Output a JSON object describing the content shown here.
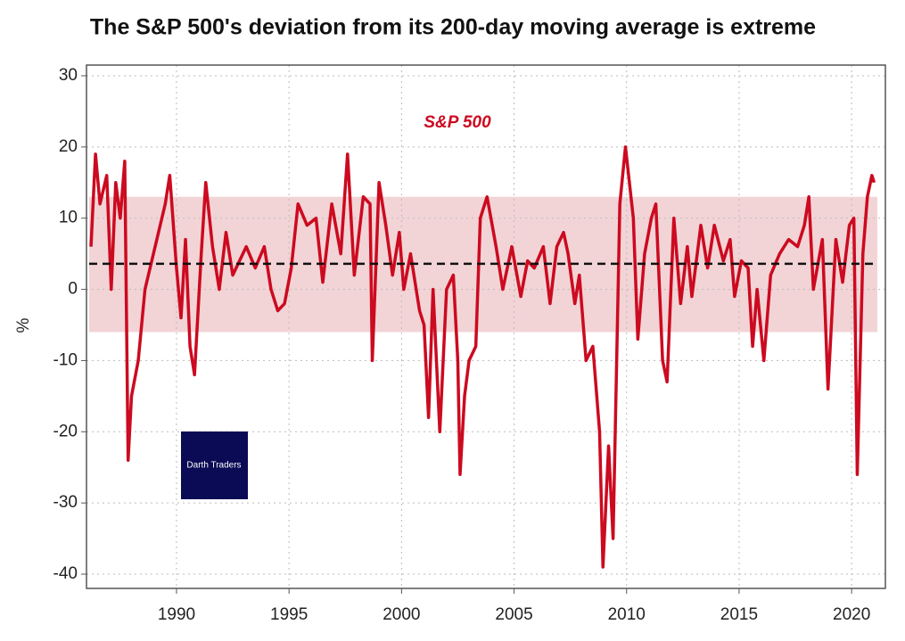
{
  "chart_data": {
    "type": "line",
    "title": "The S&P 500's deviation from its 200-day moving average is extreme",
    "y_label": "%",
    "watermark": "Darth Traders",
    "xlim": [
      1986,
      2021.5
    ],
    "xticks": [
      1990,
      1995,
      2000,
      2005,
      2010,
      2015,
      2020
    ],
    "ylim": [
      -42,
      31.5
    ],
    "yticks": [
      -40,
      -30,
      -20,
      -10,
      0,
      10,
      20,
      30
    ],
    "grid": true,
    "band": [
      -6,
      13
    ],
    "band_color": "#f2d4d6",
    "reference_line": 3.6,
    "series": [
      {
        "name": "S&P 500",
        "color": "#cc0a20",
        "x": [
          1986.2,
          1986.4,
          1986.6,
          1986.9,
          1987.1,
          1987.3,
          1987.5,
          1987.7,
          1987.85,
          1988.0,
          1988.3,
          1988.6,
          1988.9,
          1989.2,
          1989.5,
          1989.7,
          1990.0,
          1990.2,
          1990.4,
          1990.6,
          1990.8,
          1991.1,
          1991.3,
          1991.6,
          1991.9,
          1992.2,
          1992.5,
          1992.8,
          1993.1,
          1993.5,
          1993.9,
          1994.2,
          1994.5,
          1994.8,
          1995.1,
          1995.4,
          1995.8,
          1996.2,
          1996.5,
          1996.9,
          1997.3,
          1997.6,
          1997.9,
          1998.3,
          1998.6,
          1998.7,
          1999.0,
          1999.3,
          1999.6,
          1999.9,
          2000.1,
          2000.4,
          2000.8,
          2001.0,
          2001.2,
          2001.4,
          2001.7,
          2002.0,
          2002.3,
          2002.5,
          2002.6,
          2002.8,
          2003.0,
          2003.3,
          2003.5,
          2003.8,
          2004.2,
          2004.5,
          2004.9,
          2005.3,
          2005.6,
          2005.9,
          2006.3,
          2006.6,
          2006.9,
          2007.2,
          2007.4,
          2007.7,
          2007.9,
          2008.2,
          2008.5,
          2008.8,
          2008.95,
          2009.2,
          2009.4,
          2009.7,
          2009.95,
          2010.3,
          2010.5,
          2010.8,
          2011.1,
          2011.3,
          2011.6,
          2011.8,
          2012.1,
          2012.4,
          2012.7,
          2012.9,
          2013.3,
          2013.6,
          2013.9,
          2014.3,
          2014.6,
          2014.8,
          2015.1,
          2015.4,
          2015.6,
          2015.8,
          2016.1,
          2016.4,
          2016.8,
          2017.2,
          2017.6,
          2017.9,
          2018.1,
          2018.3,
          2018.7,
          2018.95,
          2019.3,
          2019.6,
          2019.9,
          2020.1,
          2020.25,
          2020.5,
          2020.7,
          2020.9,
          2021.0
        ],
        "values": [
          6,
          19,
          12,
          16,
          0,
          15,
          10,
          18,
          -24,
          -15,
          -10,
          0,
          4,
          8,
          12,
          16,
          3,
          -4,
          7,
          -8,
          -12,
          5,
          15,
          6,
          0,
          8,
          2,
          4,
          6,
          3,
          6,
          0,
          -3,
          -2,
          3,
          12,
          9,
          10,
          1,
          12,
          5,
          19,
          2,
          13,
          12,
          -10,
          15,
          9,
          2,
          8,
          0,
          5,
          -3,
          -5,
          -18,
          0,
          -20,
          0,
          2,
          -10,
          -26,
          -15,
          -10,
          -8,
          10,
          13,
          6,
          0,
          6,
          -1,
          4,
          3,
          6,
          -2,
          6,
          8,
          5,
          -2,
          2,
          -10,
          -8,
          -20,
          -39,
          -22,
          -35,
          12,
          20,
          10,
          -7,
          5,
          10,
          12,
          -10,
          -13,
          10,
          -2,
          6,
          -1,
          9,
          3,
          9,
          4,
          7,
          -1,
          4,
          3,
          -8,
          0,
          -10,
          2,
          5,
          7,
          6,
          9,
          13,
          0,
          7,
          -14,
          7,
          1,
          9,
          10,
          -26,
          5,
          13,
          16,
          15
        ]
      }
    ]
  }
}
